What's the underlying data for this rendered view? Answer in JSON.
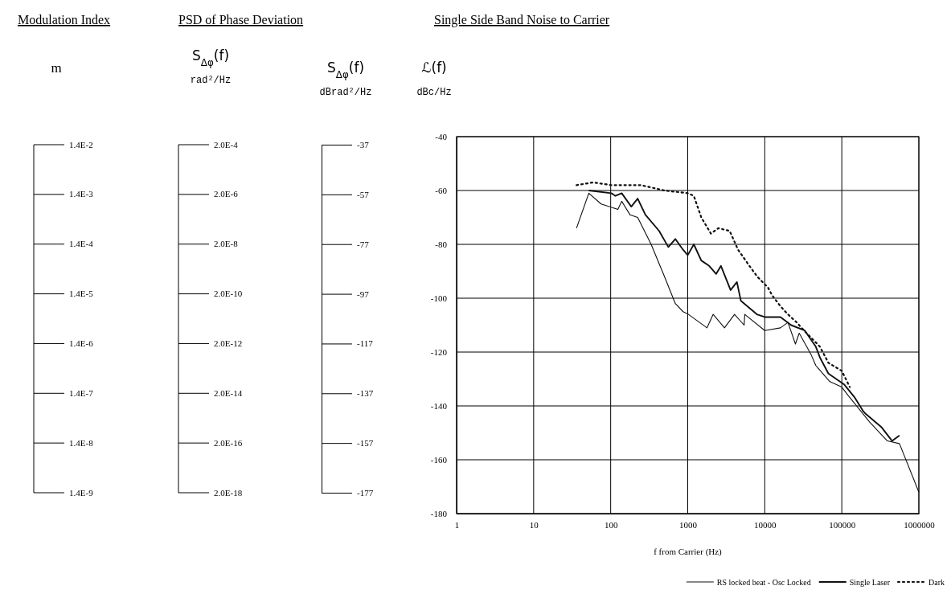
{
  "chart_data": {
    "type": "line",
    "title": "Single Side Band Noise to Carrier",
    "annotations": [
      "Modulation Index",
      "PSD of Phase Deviation",
      "m",
      "1.4E-2",
      "1.4E-3",
      "1.4E-4",
      "1.4E-5",
      "1.4E-6",
      "1.4E-7",
      "1.4E-8",
      "1.4E-9",
      "S$_{Δφ}$(f) rad²/Hz",
      "2.0E-4",
      "2.0E-6",
      "2.0E-8",
      "2.0E-10",
      "2.0E-12",
      "2.0E-14",
      "2.0E-16",
      "2.0E-18"
    ],
    "xlabel": "f from Carrier (Hz)",
    "ylabel": "ℒ(f) dBc/Hz",
    "y2label": "S$_{Δφ}$(f) dBrad²/Hz",
    "log": "x",
    "grid": true,
    "legend": "bottom right",
    "xlim": [
      1,
      1000000
    ],
    "xticks": [
      1,
      10,
      100,
      1000,
      10000,
      100000,
      1000000
    ],
    "ylim": [
      -180,
      -40
    ],
    "yticks": [
      -180,
      -160,
      -140,
      -120,
      -100,
      -80,
      -60,
      -40
    ],
    "y2lim": [
      -177,
      -37
    ],
    "y2ticks": [
      -177,
      -157,
      -137,
      -117,
      -97,
      -77,
      -57,
      -37
    ],
    "series": [
      {
        "name": "RS locked beat - Osc Locked",
        "color": "#111111",
        "line_style": "solid",
        "x": [
          36,
          52,
          75,
          124,
          139,
          178,
          224,
          335,
          500,
          690,
          870,
          1020,
          1780,
          2140,
          3000,
          4050,
          5400,
          5500,
          10000,
          16000,
          20000,
          25000,
          28000,
          40000,
          46000,
          70000,
          100000,
          120000,
          230000,
          390000,
          560000,
          1000000
        ],
        "values": [
          -74,
          -61,
          -65,
          -67,
          -64,
          -69,
          -70,
          -80,
          -92,
          -102,
          -105,
          -106,
          -111,
          -106,
          -111,
          -106,
          -110,
          -106,
          -112,
          -111,
          -109,
          -117,
          -113,
          -121,
          -125,
          -131,
          -133,
          -136,
          -146,
          -153,
          -154,
          -172
        ]
      },
      {
        "name": "Single Laser",
        "color": "#111111",
        "line_style": "solid",
        "x": [
          52,
          102,
          115,
          139,
          185,
          224,
          282,
          425,
          560,
          690,
          870,
          1000,
          1200,
          1500,
          1900,
          2340,
          2700,
          3600,
          4350,
          4900,
          7900,
          10000,
          16000,
          22000,
          33000,
          46000,
          52000,
          67000,
          107000,
          148000,
          190000,
          205000,
          330000,
          450000,
          560000
        ],
        "values": [
          -60,
          -61,
          -62,
          -61,
          -66,
          -63,
          -69,
          -75,
          -81,
          -78,
          -82,
          -84,
          -80,
          -86,
          -88,
          -91,
          -88,
          -97,
          -94,
          -101,
          -106,
          -107,
          -107,
          -110,
          -112,
          -118,
          -122,
          -128,
          -132,
          -137,
          -142,
          -143,
          -148,
          -153,
          -151
        ]
      },
      {
        "name": "Dark",
        "color": "#111111",
        "line_style": "dotted",
        "x": [
          36,
          59,
          102,
          139,
          245,
          500,
          1000,
          1200,
          1500,
          2000,
          2500,
          3500,
          4500,
          6700,
          8000,
          11000,
          12500,
          16000,
          20000,
          26000,
          30000,
          41000,
          52000,
          67000,
          100000,
          127000
        ],
        "values": [
          -58,
          -57,
          -58,
          -58,
          -58,
          -60,
          -61,
          -62,
          -70,
          -76,
          -74,
          -75,
          -82,
          -89,
          -92,
          -96,
          -99,
          -103,
          -106,
          -109,
          -111,
          -115,
          -118,
          -124,
          -127,
          -133
        ]
      }
    ]
  }
}
